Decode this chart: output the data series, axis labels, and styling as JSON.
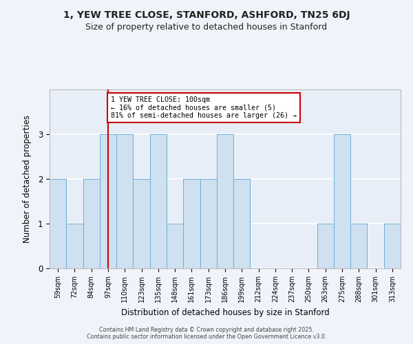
{
  "title": "1, YEW TREE CLOSE, STANFORD, ASHFORD, TN25 6DJ",
  "subtitle": "Size of property relative to detached houses in Stanford",
  "xlabel": "Distribution of detached houses by size in Stanford",
  "ylabel": "Number of detached properties",
  "bins": [
    "59sqm",
    "72sqm",
    "84sqm",
    "97sqm",
    "110sqm",
    "123sqm",
    "135sqm",
    "148sqm",
    "161sqm",
    "173sqm",
    "186sqm",
    "199sqm",
    "212sqm",
    "224sqm",
    "237sqm",
    "250sqm",
    "263sqm",
    "275sqm",
    "288sqm",
    "301sqm",
    "313sqm"
  ],
  "values": [
    2,
    1,
    2,
    3,
    3,
    2,
    3,
    1,
    2,
    2,
    3,
    2,
    0,
    0,
    0,
    0,
    1,
    3,
    1,
    0,
    1
  ],
  "bar_color": "#cfe0f0",
  "bar_edge_color": "#6baed6",
  "vline_x_index": 3,
  "vline_color": "#cc0000",
  "annotation_title": "1 YEW TREE CLOSE: 100sqm",
  "annotation_line1": "← 16% of detached houses are smaller (5)",
  "annotation_line2": "81% of semi-detached houses are larger (26) →",
  "annotation_box_color": "#ffffff",
  "annotation_box_edge_color": "#cc0000",
  "ylim": [
    0,
    4
  ],
  "yticks": [
    0,
    1,
    2,
    3
  ],
  "bg_color": "#f0f4fa",
  "plot_bg_color": "#e8eef8",
  "grid_color": "#ffffff",
  "footer1": "Contains HM Land Registry data © Crown copyright and database right 2025.",
  "footer2": "Contains public sector information licensed under the Open Government Licence v3.0.",
  "title_fontsize": 10,
  "subtitle_fontsize": 9
}
